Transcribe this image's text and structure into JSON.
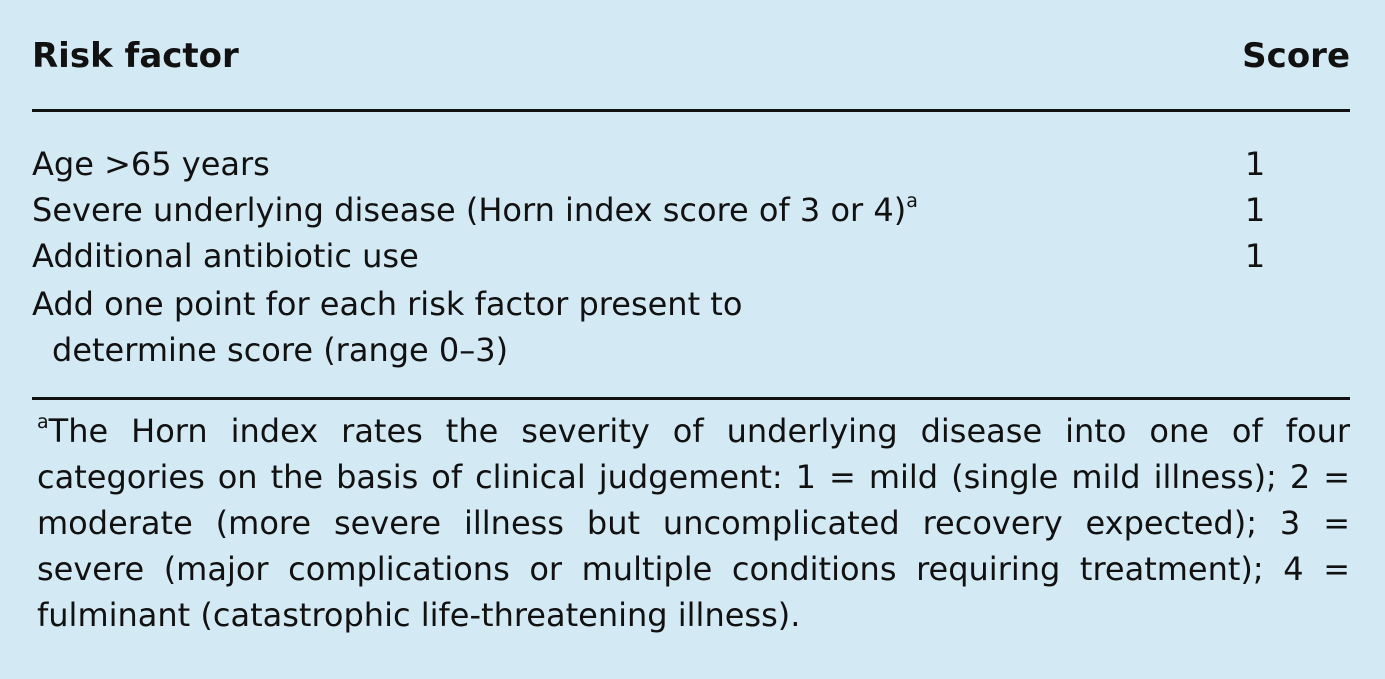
{
  "table": {
    "headers": {
      "risk_factor": "Risk factor",
      "score": "Score"
    },
    "rows": [
      {
        "label": "Age >65 years",
        "sup": "",
        "score": "1"
      },
      {
        "label": "Severe underlying disease (Horn index score of 3 or 4)",
        "sup": "a",
        "score": "1"
      },
      {
        "label": "Additional antibiotic use",
        "sup": "",
        "score": "1"
      }
    ],
    "note_line1": "Add one point for each risk factor present to",
    "note_line2": "determine score (range 0–3)"
  },
  "footnote": {
    "marker": "a",
    "text": "The Horn index rates the severity of underlying disease into one of four categories on the basis of clinical judgement: 1 = mild (single mild illness); 2 = moderate (more severe illness but uncomplicated recovery expected); 3 = severe (major complications or multiple conditions requiring treatment); 4 = fulminant (catastrophic life-threatening illness)."
  }
}
